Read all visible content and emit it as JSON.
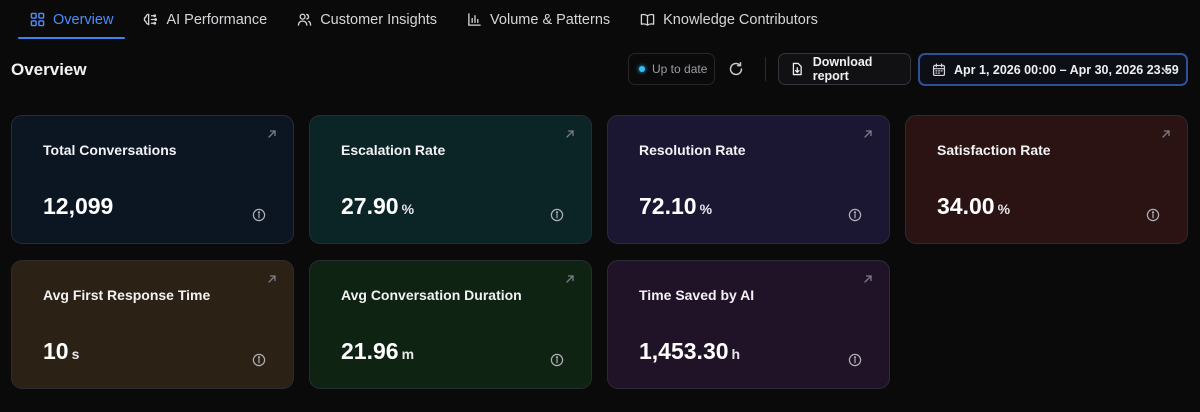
{
  "tabs": [
    {
      "label": "Overview",
      "icon": "grid-icon",
      "active": true
    },
    {
      "label": "AI Performance",
      "icon": "brain-icon",
      "active": false
    },
    {
      "label": "Customer Insights",
      "icon": "users-icon",
      "active": false
    },
    {
      "label": "Volume & Patterns",
      "icon": "bar-chart-icon",
      "active": false
    },
    {
      "label": "Knowledge Contributors",
      "icon": "book-icon",
      "active": false
    }
  ],
  "header": {
    "title": "Overview",
    "status": "Up to date",
    "download_label": "Download report",
    "date_range": "Apr 1, 2026 00:00 – Apr 30, 2026 23:59"
  },
  "cards": [
    {
      "title": "Total Conversations",
      "value": "12,099",
      "unit": ""
    },
    {
      "title": "Escalation Rate",
      "value": "27.90",
      "unit": "%"
    },
    {
      "title": "Resolution Rate",
      "value": "72.10",
      "unit": "%"
    },
    {
      "title": "Satisfaction Rate",
      "value": "34.00",
      "unit": "%"
    },
    {
      "title": "Avg First Response Time",
      "value": "10",
      "unit": "s"
    },
    {
      "title": "Avg Conversation Duration",
      "value": "21.96",
      "unit": "m"
    },
    {
      "title": "Time Saved by AI",
      "value": "1,453.30",
      "unit": "h"
    }
  ],
  "colors": {
    "accent": "#3b82f6",
    "status_dot": "#38bdf8"
  }
}
